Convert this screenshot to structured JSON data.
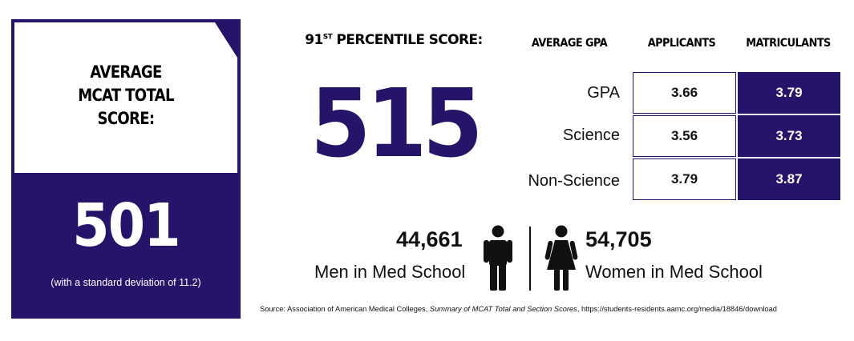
{
  "card": {
    "title_lines": [
      "AVERAGE",
      "MCAT TOTAL",
      "SCORE:"
    ],
    "score": "501",
    "note": "(with a standard deviation of 11.2)"
  },
  "percentile": {
    "label_prefix": "91",
    "label_sup": "ST",
    "label_suffix": "PERCENTILE SCORE:",
    "score": "515"
  },
  "gpa_table": {
    "header_average": "AVERAGE GPA",
    "header_applicants": "APPLICANTS",
    "header_matriculants": "MATRICULANTS",
    "rows": [
      {
        "label": "GPA",
        "applicants": "3.66",
        "matriculants": "3.79"
      },
      {
        "label": "Science",
        "applicants": "3.56",
        "matriculants": "3.73"
      },
      {
        "label": "Non-Science",
        "applicants": "3.79",
        "matriculants": "3.87"
      }
    ]
  },
  "demographics": {
    "men_count": "44,661",
    "men_label": "Men in Med School",
    "women_count": "54,705",
    "women_label": "Women in Med School"
  },
  "source": {
    "prefix": "Source: Association of American Medical Colleges, ",
    "title": "Summary of MCAT Total and Section Scores",
    "suffix": ", https://students-residents.aamc.org/media/18846/download"
  },
  "colors": {
    "accent": "#26136a",
    "text": "#111111",
    "background": "#ffffff"
  },
  "icons": [
    "man-icon",
    "woman-icon"
  ]
}
